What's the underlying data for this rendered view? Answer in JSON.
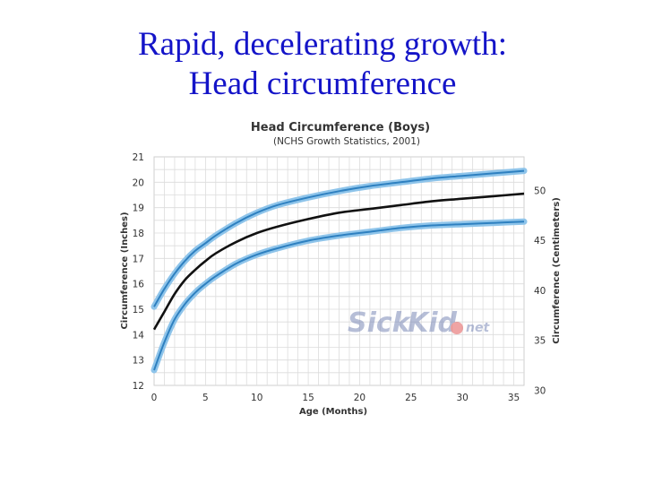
{
  "slide": {
    "title_line1": "Rapid, decelerating growth:",
    "title_line2": "Head circumference"
  },
  "watermark": {
    "text_1": "Sick",
    "text_2": "Kid",
    "text_3": "net"
  },
  "colors": {
    "title": "#1414c8",
    "percentile_band": "#8ec4ea",
    "percentile_line": "#2e80c0",
    "median_line": "#111111",
    "grid": "#dcdcdc"
  },
  "chart_data": {
    "type": "line",
    "title": "Head Circumference (Boys)",
    "subtitle": "(NCHS Growth Statistics, 2001)",
    "xlabel": "Age (Months)",
    "ylabel": "Circumference (Inches)",
    "ylabel_right": "Circumference (Centimeters)",
    "xlim": [
      0,
      36
    ],
    "ylim": [
      12,
      21
    ],
    "ylim_right_cm": [
      30.48,
      53.34
    ],
    "x_ticks": [
      0,
      5,
      10,
      15,
      20,
      25,
      30,
      35
    ],
    "y_ticks": [
      12,
      13,
      14,
      15,
      16,
      17,
      18,
      19,
      20,
      21
    ],
    "y_ticks_right_cm": [
      30,
      35,
      40,
      45,
      50
    ],
    "grid": true,
    "x": [
      0,
      1,
      2,
      3,
      4,
      5,
      6,
      8,
      10,
      12,
      15,
      18,
      21,
      24,
      27,
      30,
      33,
      36
    ],
    "series": [
      {
        "key": "upper",
        "values": [
          15.1,
          15.8,
          16.4,
          16.9,
          17.3,
          17.6,
          17.9,
          18.4,
          18.8,
          19.1,
          19.4,
          19.65,
          19.85,
          20.0,
          20.15,
          20.25,
          20.35,
          20.45
        ]
      },
      {
        "key": "median",
        "values": [
          14.2,
          14.9,
          15.6,
          16.15,
          16.55,
          16.9,
          17.2,
          17.65,
          18.0,
          18.25,
          18.55,
          18.8,
          18.95,
          19.1,
          19.25,
          19.35,
          19.45,
          19.55
        ]
      },
      {
        "key": "lower",
        "values": [
          12.6,
          13.7,
          14.6,
          15.2,
          15.65,
          16.0,
          16.3,
          16.8,
          17.15,
          17.4,
          17.7,
          17.9,
          18.05,
          18.2,
          18.3,
          18.35,
          18.4,
          18.45
        ]
      }
    ]
  }
}
